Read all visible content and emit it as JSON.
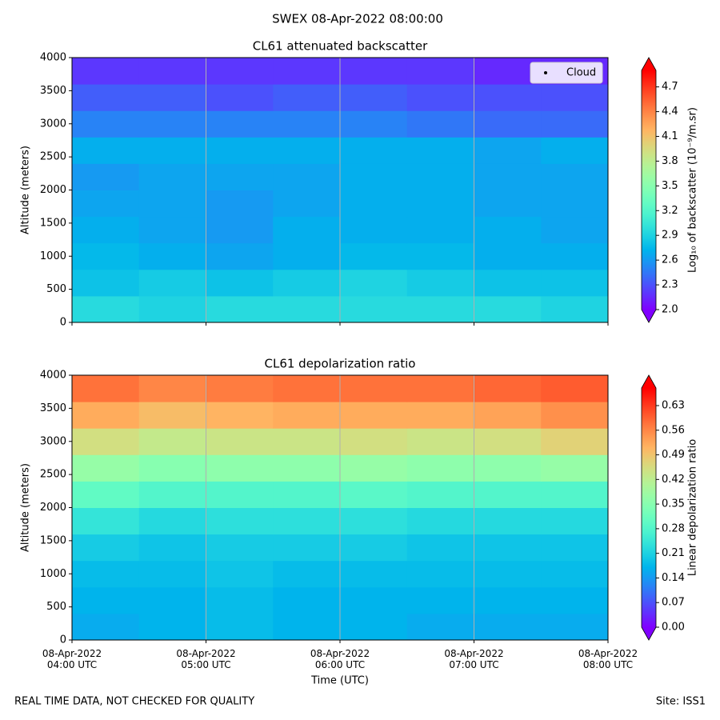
{
  "suptitle": "SWEX 08-Apr-2022 08:00:00",
  "footer_left": "REAL TIME DATA, NOT CHECKED FOR QUALITY",
  "footer_right": "Site: ISS1",
  "chart_data": [
    {
      "type": "heatmap",
      "title": "CL61 attenuated backscatter",
      "ylabel": "Altitude (meters)",
      "colorbar_label": "Log₁₀ of backscatter (10⁻⁹/m.sr)",
      "colormap": "rainbow",
      "legend": "upper right",
      "legend_entry": {
        "name": "Cloud",
        "color": "#000000"
      },
      "xlim": [
        4,
        8
      ],
      "xticks": [
        4,
        5,
        6,
        7,
        8
      ],
      "show_xtick_labels": false,
      "grid": true,
      "ylim": [
        0,
        4000
      ],
      "yticks": [
        0,
        500,
        1000,
        1500,
        2000,
        2500,
        3000,
        3500,
        4000
      ],
      "x_bins": [
        4,
        4.5,
        5,
        5.5,
        6,
        6.5,
        7,
        7.5,
        8
      ],
      "y_bins": [
        0,
        400,
        800,
        1200,
        1600,
        2000,
        2400,
        2800,
        3200,
        3600,
        4000
      ],
      "clim": [
        2.0,
        4.9
      ],
      "cticks": [
        {
          "value": 2,
          "label": "2.0"
        },
        2.3,
        2.6,
        2.9,
        3.2,
        3.5,
        3.8,
        4.1,
        4.4,
        4.7
      ],
      "values": [
        [
          2.95,
          2.9,
          2.95,
          2.95,
          2.95,
          2.95,
          2.95,
          2.9
        ],
        [
          2.8,
          2.85,
          2.8,
          2.85,
          2.9,
          2.85,
          2.8,
          2.8
        ],
        [
          2.75,
          2.7,
          2.65,
          2.7,
          2.75,
          2.75,
          2.7,
          2.7
        ],
        [
          2.7,
          2.65,
          2.6,
          2.7,
          2.7,
          2.7,
          2.7,
          2.65
        ],
        [
          2.65,
          2.65,
          2.6,
          2.65,
          2.7,
          2.7,
          2.65,
          2.65
        ],
        [
          2.6,
          2.65,
          2.65,
          2.65,
          2.7,
          2.7,
          2.65,
          2.65
        ],
        [
          2.7,
          2.7,
          2.7,
          2.7,
          2.7,
          2.7,
          2.65,
          2.7
        ],
        [
          2.5,
          2.5,
          2.5,
          2.5,
          2.5,
          2.45,
          2.4,
          2.4
        ],
        [
          2.35,
          2.35,
          2.3,
          2.35,
          2.35,
          2.3,
          2.3,
          2.3
        ],
        [
          2.2,
          2.2,
          2.2,
          2.2,
          2.2,
          2.2,
          2.15,
          2.15
        ]
      ]
    },
    {
      "type": "heatmap",
      "title": "CL61 depolarization ratio",
      "ylabel": "Altitude (meters)",
      "xlabel": "Time (UTC)",
      "colorbar_label": "Linear depolarization ratio",
      "colormap": "rainbow",
      "xlim": [
        4,
        8
      ],
      "grid": true,
      "show_xtick_labels": true,
      "xticks": [
        {
          "value": 4,
          "label": "08-Apr-2022\n04:00 UTC"
        },
        {
          "value": 5,
          "label": "08-Apr-2022\n05:00 UTC"
        },
        {
          "value": 6,
          "label": "08-Apr-2022\n06:00 UTC"
        },
        {
          "value": 7,
          "label": "08-Apr-2022\n07:00 UTC"
        },
        {
          "value": 8,
          "label": "08-Apr-2022\n08:00 UTC"
        }
      ],
      "ylim": [
        0,
        4000
      ],
      "yticks": [
        0,
        500,
        1000,
        1500,
        2000,
        2500,
        3000,
        3500,
        4000
      ],
      "x_bins": [
        4,
        4.5,
        5,
        5.5,
        6,
        6.5,
        7,
        7.5,
        8
      ],
      "y_bins": [
        0,
        400,
        800,
        1200,
        1600,
        2000,
        2400,
        2800,
        3200,
        3600,
        4000
      ],
      "clim": [
        0,
        0.68
      ],
      "cticks": [
        {
          "value": 0,
          "label": "0.00"
        },
        0.07,
        0.14,
        0.21,
        0.28,
        0.35,
        0.42,
        0.49,
        0.56,
        0.63
      ],
      "values": [
        [
          0.16,
          0.17,
          0.18,
          0.17,
          0.17,
          0.16,
          0.16,
          0.16
        ],
        [
          0.17,
          0.17,
          0.18,
          0.17,
          0.17,
          0.17,
          0.17,
          0.17
        ],
        [
          0.18,
          0.18,
          0.19,
          0.18,
          0.18,
          0.18,
          0.18,
          0.18
        ],
        [
          0.2,
          0.19,
          0.2,
          0.2,
          0.2,
          0.19,
          0.19,
          0.19
        ],
        [
          0.24,
          0.22,
          0.23,
          0.23,
          0.23,
          0.22,
          0.22,
          0.22
        ],
        [
          0.3,
          0.28,
          0.28,
          0.28,
          0.29,
          0.28,
          0.28,
          0.28
        ],
        [
          0.37,
          0.35,
          0.36,
          0.36,
          0.37,
          0.36,
          0.36,
          0.37
        ],
        [
          0.45,
          0.43,
          0.44,
          0.44,
          0.45,
          0.44,
          0.45,
          0.47
        ],
        [
          0.52,
          0.5,
          0.51,
          0.52,
          0.52,
          0.52,
          0.53,
          0.55
        ],
        [
          0.58,
          0.56,
          0.57,
          0.58,
          0.58,
          0.58,
          0.59,
          0.6
        ]
      ]
    }
  ]
}
